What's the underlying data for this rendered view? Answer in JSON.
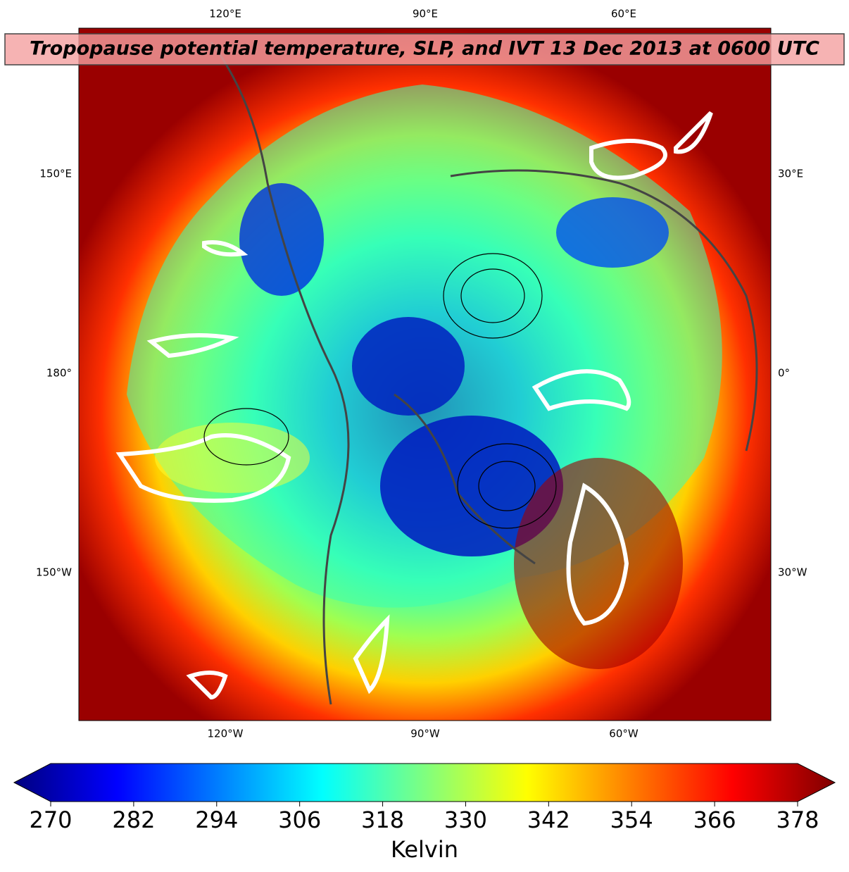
{
  "title": "Tropopause potential temperature, SLP, and IVT 13 Dec 2013 at 0600 UTC",
  "map": {
    "top_labels": [
      "120°E",
      "90°E",
      "60°E"
    ],
    "bottom_labels": [
      "120°W",
      "90°W",
      "60°W"
    ],
    "left_labels": [
      "150°E",
      "180°",
      "150°W"
    ],
    "right_labels": [
      "30°E",
      "0°",
      "30°W"
    ]
  },
  "colorbar": {
    "lim": [
      270,
      378
    ],
    "ticks": [
      270,
      282,
      294,
      306,
      318,
      330,
      342,
      354,
      366,
      378
    ],
    "label": "Kelvin"
  }
}
